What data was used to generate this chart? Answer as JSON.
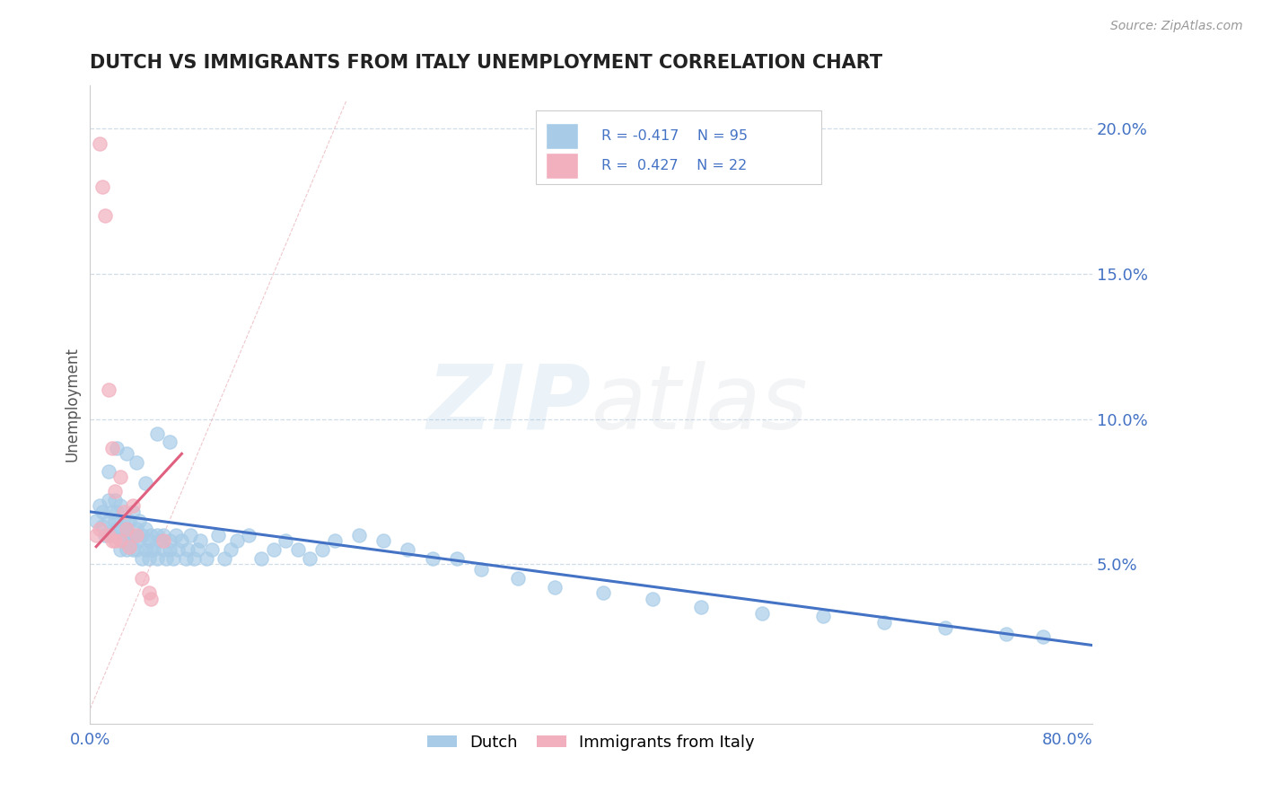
{
  "title": "DUTCH VS IMMIGRANTS FROM ITALY UNEMPLOYMENT CORRELATION CHART",
  "source_text": "Source: ZipAtlas.com",
  "ylabel": "Unemployment",
  "xlim": [
    0.0,
    0.82
  ],
  "ylim": [
    -0.005,
    0.215
  ],
  "xticks": [
    0.0,
    0.8
  ],
  "xtick_labels": [
    "0.0%",
    "80.0%"
  ],
  "yticks_right": [
    0.05,
    0.1,
    0.15,
    0.2
  ],
  "ytick_right_labels": [
    "5.0%",
    "10.0%",
    "15.0%",
    "20.0%"
  ],
  "blue_color": "#a8cce8",
  "pink_color": "#f2b0be",
  "dark_blue": "#4472c4",
  "dark_pink": "#e06080",
  "ref_line_color": "#e0b0b8",
  "grid_color": "#d0dde8",
  "legend_R1": "R = -0.417",
  "legend_N1": "N = 95",
  "legend_R2": "R =  0.427",
  "legend_N2": "N = 22",
  "watermark_blue": "#7bafd4",
  "watermark_gray": "#b0b8c0",
  "blue_scatter_x": [
    0.005,
    0.008,
    0.01,
    0.01,
    0.012,
    0.015,
    0.015,
    0.018,
    0.018,
    0.02,
    0.02,
    0.022,
    0.022,
    0.025,
    0.025,
    0.025,
    0.028,
    0.028,
    0.03,
    0.03,
    0.03,
    0.032,
    0.032,
    0.035,
    0.035,
    0.035,
    0.038,
    0.038,
    0.04,
    0.04,
    0.042,
    0.042,
    0.045,
    0.045,
    0.048,
    0.048,
    0.05,
    0.05,
    0.052,
    0.055,
    0.055,
    0.058,
    0.06,
    0.06,
    0.062,
    0.065,
    0.065,
    0.068,
    0.07,
    0.072,
    0.075,
    0.078,
    0.08,
    0.082,
    0.085,
    0.088,
    0.09,
    0.095,
    0.1,
    0.105,
    0.11,
    0.115,
    0.12,
    0.13,
    0.14,
    0.15,
    0.16,
    0.17,
    0.18,
    0.19,
    0.2,
    0.22,
    0.24,
    0.26,
    0.28,
    0.3,
    0.32,
    0.35,
    0.38,
    0.42,
    0.46,
    0.5,
    0.55,
    0.6,
    0.65,
    0.7,
    0.75,
    0.78,
    0.015,
    0.022,
    0.03,
    0.038,
    0.045,
    0.055,
    0.065
  ],
  "blue_scatter_y": [
    0.065,
    0.07,
    0.063,
    0.068,
    0.06,
    0.072,
    0.065,
    0.068,
    0.06,
    0.072,
    0.065,
    0.062,
    0.068,
    0.055,
    0.062,
    0.07,
    0.058,
    0.065,
    0.06,
    0.055,
    0.062,
    0.058,
    0.065,
    0.055,
    0.06,
    0.068,
    0.055,
    0.062,
    0.058,
    0.065,
    0.052,
    0.06,
    0.055,
    0.062,
    0.052,
    0.058,
    0.055,
    0.06,
    0.055,
    0.06,
    0.052,
    0.058,
    0.055,
    0.06,
    0.052,
    0.058,
    0.055,
    0.052,
    0.06,
    0.055,
    0.058,
    0.052,
    0.055,
    0.06,
    0.052,
    0.055,
    0.058,
    0.052,
    0.055,
    0.06,
    0.052,
    0.055,
    0.058,
    0.06,
    0.052,
    0.055,
    0.058,
    0.055,
    0.052,
    0.055,
    0.058,
    0.06,
    0.058,
    0.055,
    0.052,
    0.052,
    0.048,
    0.045,
    0.042,
    0.04,
    0.038,
    0.035,
    0.033,
    0.032,
    0.03,
    0.028,
    0.026,
    0.025,
    0.082,
    0.09,
    0.088,
    0.085,
    0.078,
    0.095,
    0.092
  ],
  "pink_scatter_x": [
    0.005,
    0.008,
    0.008,
    0.01,
    0.012,
    0.015,
    0.015,
    0.018,
    0.018,
    0.02,
    0.02,
    0.025,
    0.025,
    0.028,
    0.03,
    0.032,
    0.035,
    0.038,
    0.042,
    0.048,
    0.05,
    0.06
  ],
  "pink_scatter_y": [
    0.06,
    0.195,
    0.062,
    0.18,
    0.17,
    0.11,
    0.06,
    0.09,
    0.058,
    0.075,
    0.058,
    0.08,
    0.058,
    0.068,
    0.062,
    0.056,
    0.07,
    0.06,
    0.045,
    0.04,
    0.038,
    0.058
  ],
  "blue_trend_x": [
    0.0,
    0.82
  ],
  "blue_trend_y": [
    0.068,
    0.022
  ],
  "pink_trend_x": [
    0.005,
    0.075
  ],
  "pink_trend_y": [
    0.056,
    0.088
  ]
}
